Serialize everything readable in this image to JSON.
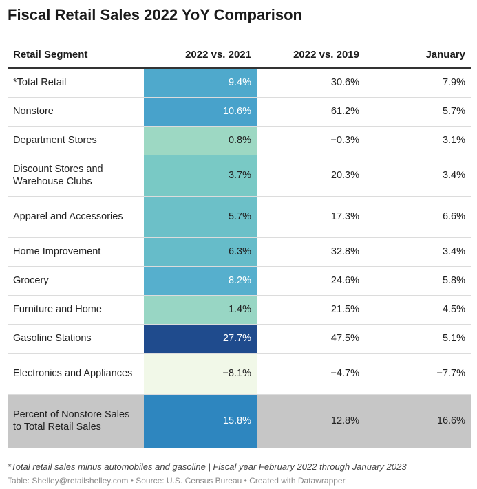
{
  "title": "Fiscal Retail Sales 2022 YoY Comparison",
  "colors": {
    "row_highlight_bg": "#c6c6c6",
    "header_rule": "#333333"
  },
  "chart_data": {
    "type": "table",
    "columns": [
      "Retail Segment",
      "2022 vs. 2021",
      "2022 vs. 2019",
      "January"
    ],
    "rows": [
      {
        "segment": "*Total Retail",
        "yoy2021": "9.4%",
        "yoy2019": "30.6%",
        "january": "7.9%",
        "heat": "#4fa9cc",
        "heat_text": "#ffffff",
        "lines": 1
      },
      {
        "segment": "Nonstore",
        "yoy2021": "10.6%",
        "yoy2019": "61.2%",
        "january": "5.7%",
        "heat": "#48a2cb",
        "heat_text": "#ffffff",
        "lines": 1
      },
      {
        "segment": "Department Stores",
        "yoy2021": "0.8%",
        "yoy2019": "−0.3%",
        "january": "3.1%",
        "heat": "#9dd8c3",
        "heat_text": "#222222",
        "lines": 1
      },
      {
        "segment": "Discount Stores and Warehouse Clubs",
        "yoy2021": "3.7%",
        "yoy2019": "20.3%",
        "january": "3.4%",
        "heat": "#79c9c5",
        "heat_text": "#222222",
        "lines": 2
      },
      {
        "segment": "Apparel and Accessories",
        "yoy2021": "5.7%",
        "yoy2019": "17.3%",
        "january": "6.6%",
        "heat": "#6cc0c8",
        "heat_text": "#222222",
        "lines": 2
      },
      {
        "segment": "Home Improvement",
        "yoy2021": "6.3%",
        "yoy2019": "32.8%",
        "january": "3.4%",
        "heat": "#66bcc9",
        "heat_text": "#222222",
        "lines": 1
      },
      {
        "segment": "Grocery",
        "yoy2021": "8.2%",
        "yoy2019": "24.6%",
        "january": "5.8%",
        "heat": "#56afcd",
        "heat_text": "#ffffff",
        "lines": 1
      },
      {
        "segment": "Furniture and Home",
        "yoy2021": "1.4%",
        "yoy2019": "21.5%",
        "january": "4.5%",
        "heat": "#98d6c4",
        "heat_text": "#222222",
        "lines": 1
      },
      {
        "segment": "Gasoline Stations",
        "yoy2021": "27.7%",
        "yoy2019": "47.5%",
        "january": "5.1%",
        "heat": "#1f4b8d",
        "heat_text": "#ffffff",
        "lines": 1
      },
      {
        "segment": "Electronics and Appliances",
        "yoy2021": "−8.1%",
        "yoy2019": "−4.7%",
        "january": "−7.7%",
        "heat": "#f1f8e8",
        "heat_text": "#222222",
        "lines": 2
      },
      {
        "segment": "Percent of Nonstore Sales to Total Retail Sales",
        "yoy2021": "15.8%",
        "yoy2019": "12.8%",
        "january": "16.6%",
        "heat": "#2e86bf",
        "heat_text": "#ffffff",
        "lines": 3
      }
    ]
  },
  "footnote": "*Total retail sales minus automobiles and gasoline | Fiscal year February 2022 through January 2023",
  "source": "Table: Shelley@retailshelley.com • Source: U.S. Census Bureau • Created with Datawrapper"
}
